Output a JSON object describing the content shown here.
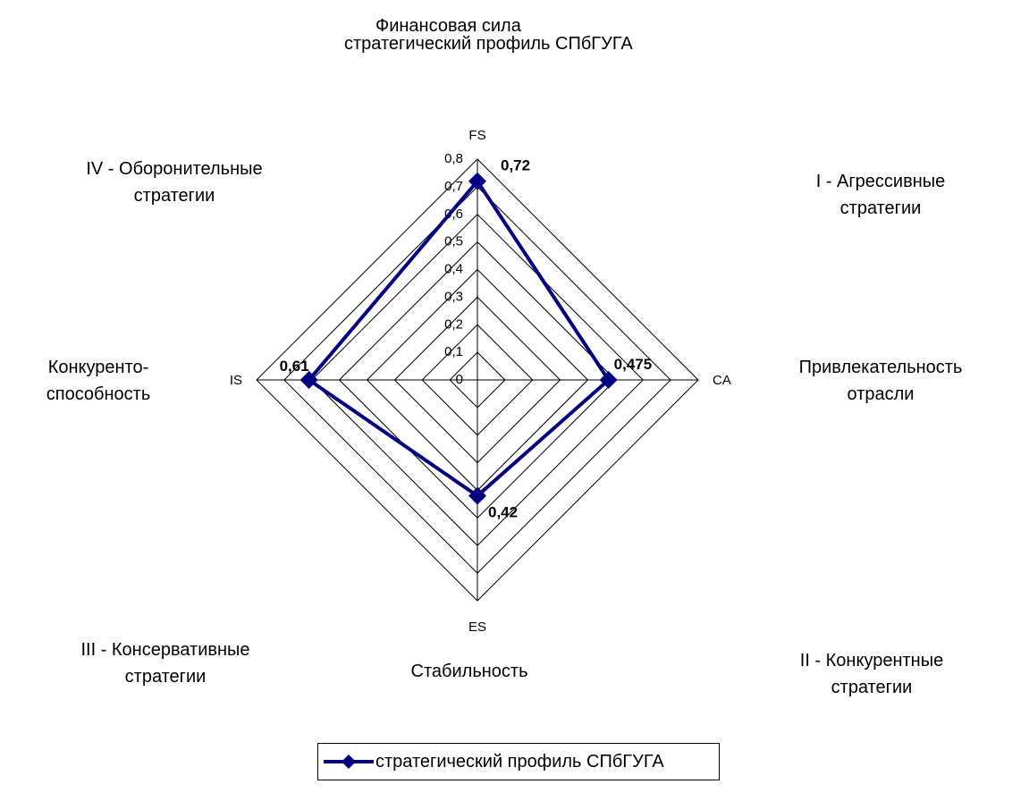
{
  "chart_data": {
    "type": "radar",
    "title_line1": "Финансовая сила",
    "title_line2": "стратегический профиль СПбГУГА",
    "axes": [
      "FS",
      "CA",
      "ES",
      "IS"
    ],
    "r_ticks": [
      "0",
      "0,1",
      "0,2",
      "0,3",
      "0,4",
      "0,5",
      "0,6",
      "0,7",
      "0,8"
    ],
    "r_range": [
      0,
      0.8
    ],
    "series": [
      {
        "name": "стратегический профиль СПбГУГА",
        "values": [
          0.72,
          0.475,
          0.42,
          0.61
        ],
        "labels": [
          "0,72",
          "0,475",
          "0,42",
          "0,61"
        ],
        "color": "#000080"
      }
    ],
    "legend_position": "bottom",
    "grid": true
  },
  "annotations": {
    "quadrant_iv": [
      "IV - Оборонительные",
      "стратегии"
    ],
    "quadrant_i": [
      "I - Агрессивные",
      "стратегии"
    ],
    "quadrant_iii": [
      "III - Консервативные",
      "стратегии"
    ],
    "quadrant_ii": [
      "II - Конкурентные",
      "стратегии"
    ],
    "left_label": [
      "Конкуренто-",
      "способность"
    ],
    "right_label": [
      "Привлекательность",
      "отрасли"
    ],
    "bottom_label": "Стабильность"
  },
  "colors": {
    "series": "#000080",
    "grid": "#000000"
  }
}
